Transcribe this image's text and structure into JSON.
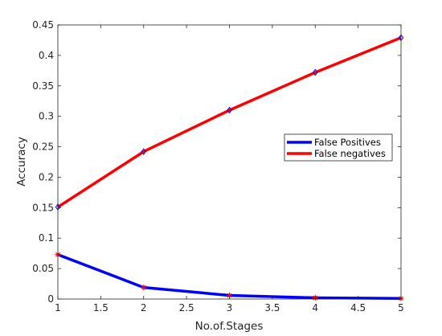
{
  "chart_data": {
    "type": "line",
    "title": "",
    "xlabel": "No.of.Stages",
    "ylabel": "Accuracy",
    "xlim": [
      1,
      5
    ],
    "ylim": [
      0,
      0.45
    ],
    "xticks": [
      1,
      1.5,
      2,
      2.5,
      3,
      3.5,
      4,
      4.5,
      5
    ],
    "xtick_labels": [
      "1",
      "1.5",
      "2",
      "2.5",
      "3",
      "3.5",
      "4",
      "4.5",
      "5"
    ],
    "yticks": [
      0,
      0.05,
      0.1,
      0.15,
      0.2,
      0.25,
      0.3,
      0.35,
      0.4,
      0.45
    ],
    "ytick_labels": [
      "0",
      "0.05",
      "0.1",
      "0.15",
      "0.2",
      "0.25",
      "0.3",
      "0.35",
      "0.4",
      "0.45"
    ],
    "grid": false,
    "legend_position": "right",
    "series": [
      {
        "name": "False Positives",
        "color": "#0000ff",
        "marker": "asterisk",
        "marker_color": "#ff0000",
        "x": [
          1,
          2,
          3,
          4,
          5
        ],
        "y": [
          0.073,
          0.019,
          0.006,
          0.002,
          0.001
        ]
      },
      {
        "name": "False negatives",
        "color": "#ff0000",
        "marker": "diamond",
        "marker_color": "#0000ff",
        "x": [
          1,
          2,
          3,
          4,
          5
        ],
        "y": [
          0.151,
          0.242,
          0.31,
          0.372,
          0.429
        ]
      }
    ]
  }
}
